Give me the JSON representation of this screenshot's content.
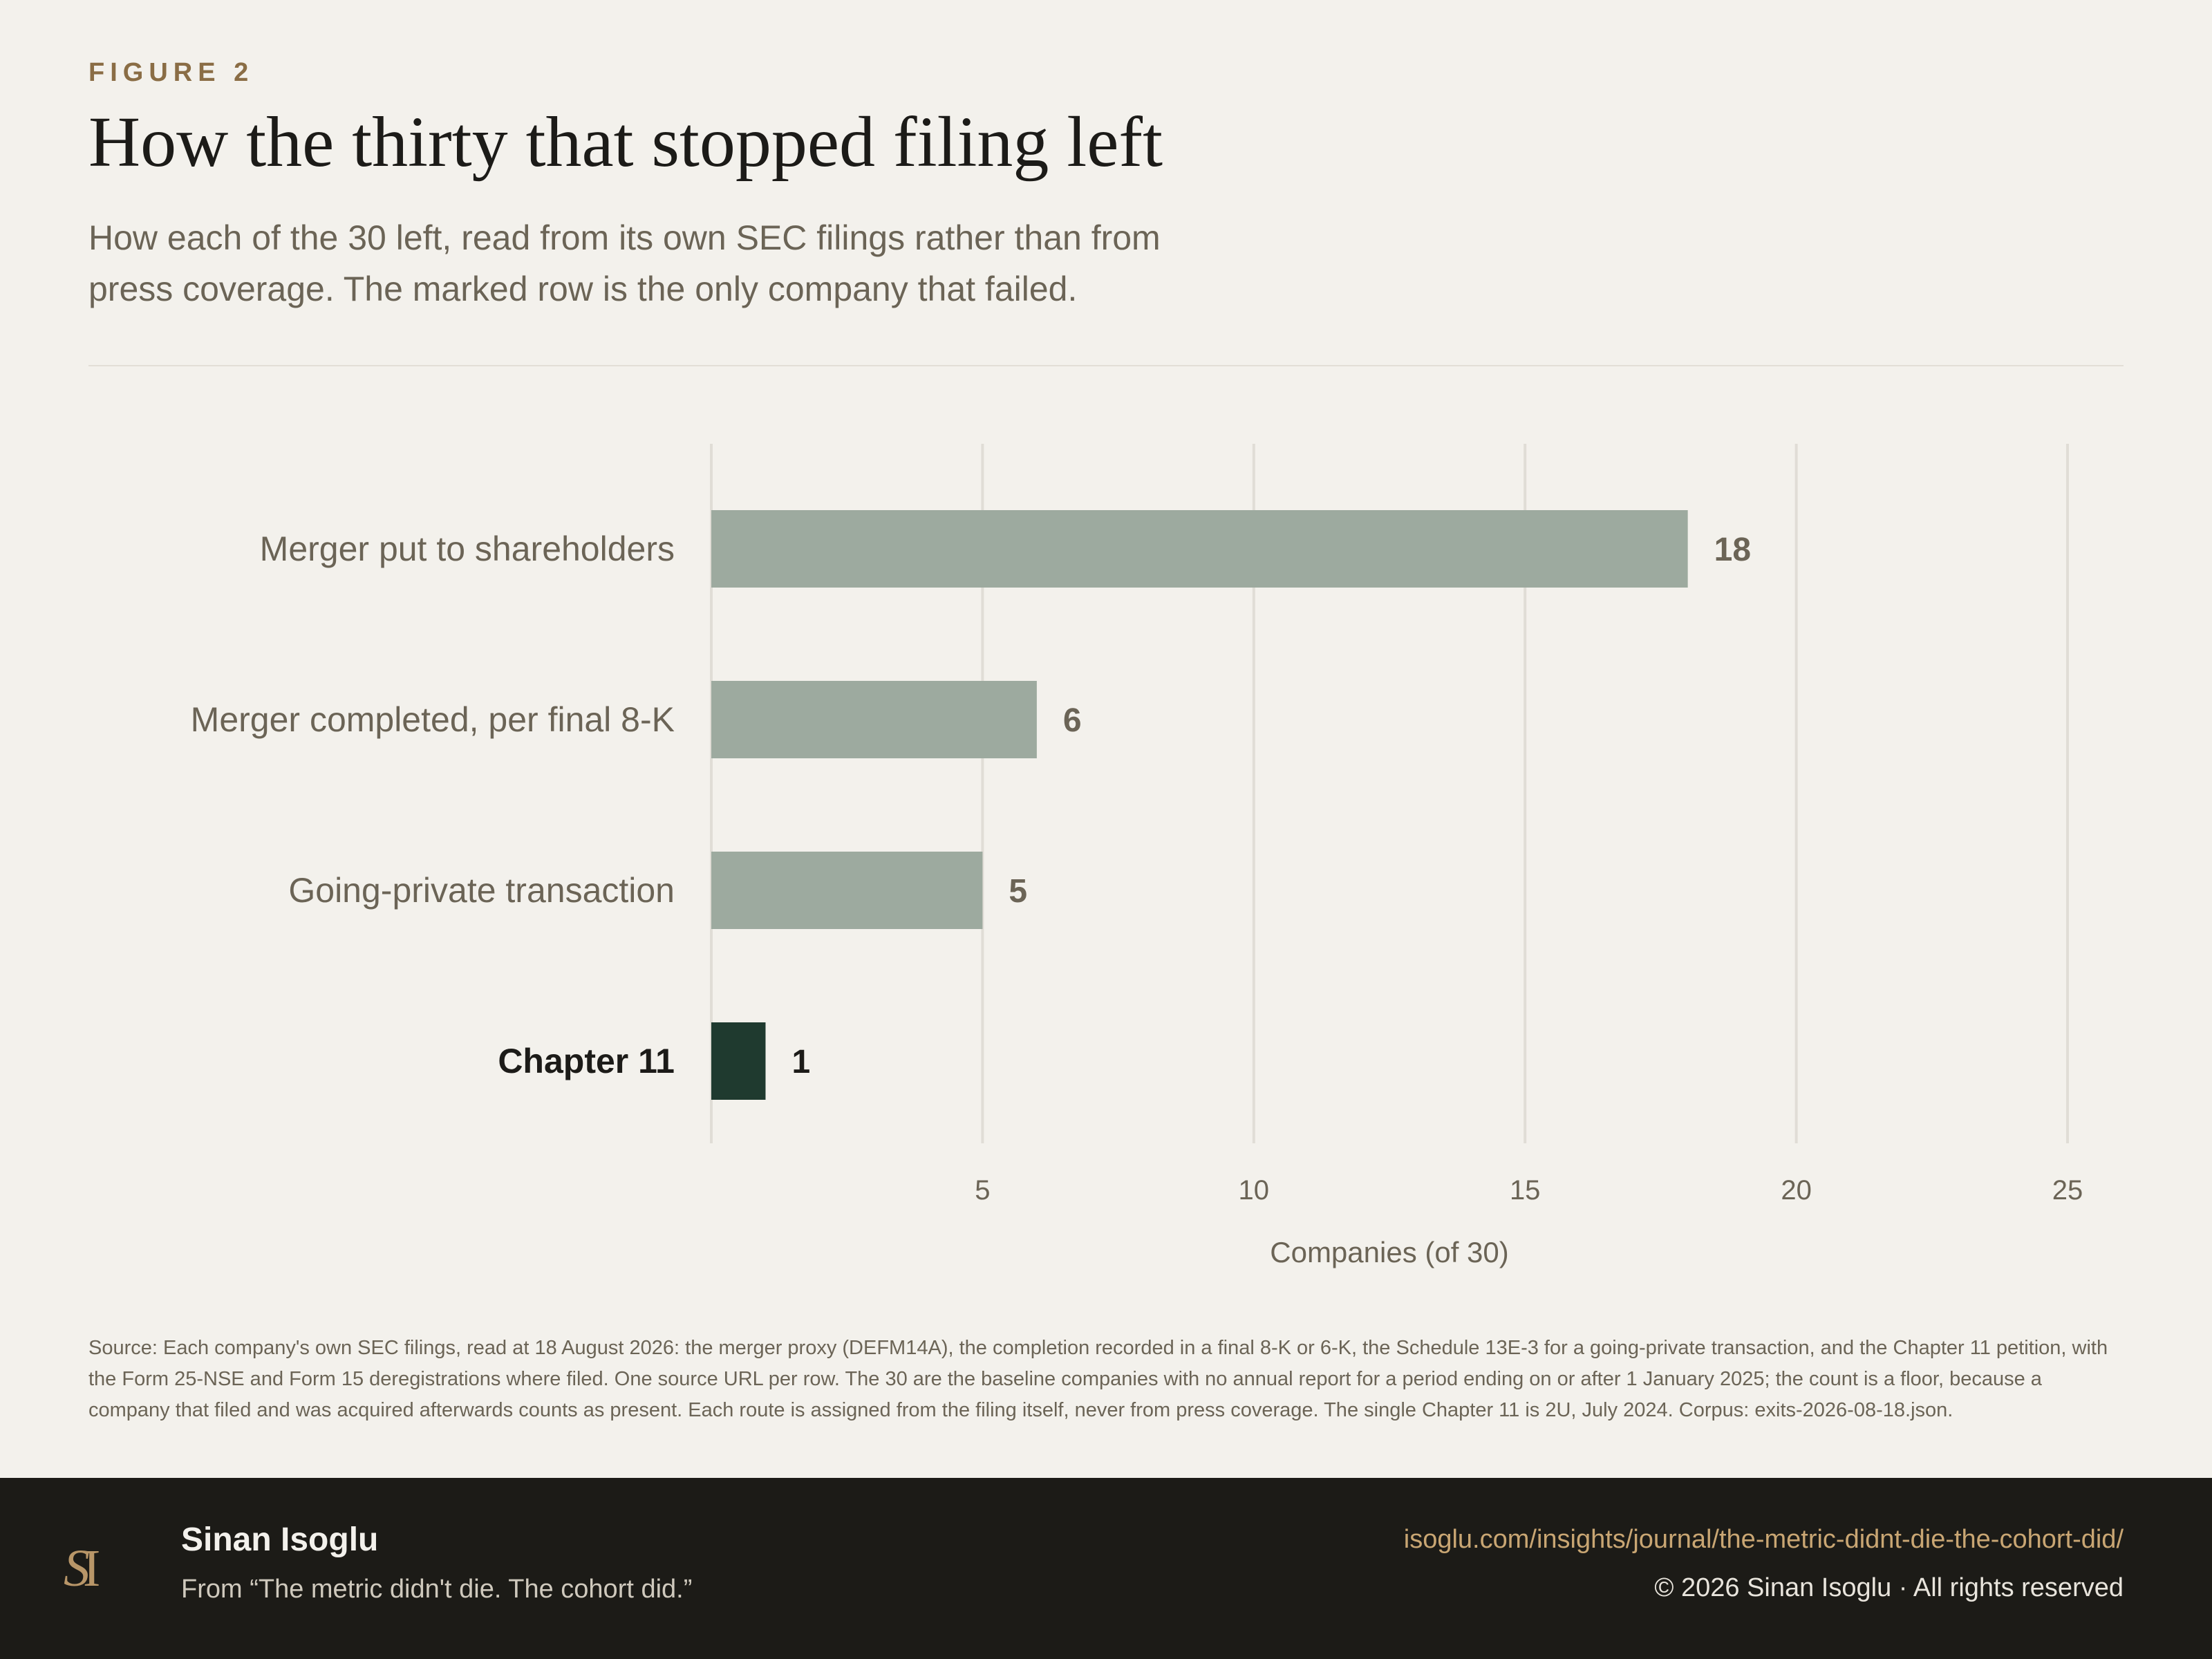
{
  "figure_label": "FIGURE 2",
  "title": "How the thirty that stopped filing left",
  "subtitle": "How each of the 30 left, read from its own SEC filings rather than from press coverage. The marked row is the only company that failed.",
  "source_note": "Source: Each company's own SEC filings, read at 18 August 2026: the merger proxy (DEFM14A), the completion recorded in a final 8-K or 6-K, the Schedule 13E-3 for a going-private transaction, and the Chapter 11 petition, with the Form 25-NSE and Form 15 deregistrations where filed. One source URL per row. The 30 are the baseline companies with no annual report for a period ending on or after 1 January 2025; the count is a floor, because a company that filed and was acquired afterwards counts as present. Each route is assigned from the filing itself, never from press coverage. The single Chapter 11 is 2U, July 2024. Corpus: exits-2026-08-18.json.",
  "footer": {
    "logo": "SI",
    "author": "Sinan Isoglu",
    "from_line": "From “The metric didn't die. The cohort did.”",
    "url": "isoglu.com/insights/journal/the-metric-didnt-die-the-cohort-did/",
    "copyright": "© 2026 Sinan Isoglu · All rights reserved"
  },
  "colors": {
    "bar": "#9daa9f",
    "highlight": "#1f3a2f",
    "grid": "#e0ddd6",
    "label": "#6b6456",
    "highlight_label": "#1c1b18",
    "accent": "#8a6d45"
  },
  "chart_data": {
    "type": "bar",
    "orientation": "horizontal",
    "categories": [
      "Merger put to shareholders",
      "Merger completed, per final 8-K",
      "Going-private transaction",
      "Chapter 11"
    ],
    "values": [
      18,
      6,
      5,
      1
    ],
    "highlight": "Chapter 11",
    "xlabel": "Companies (of 30)",
    "ylabel": "",
    "xlim": [
      0,
      25
    ],
    "xticks": [
      5,
      10,
      15,
      20,
      25
    ],
    "grid": true
  }
}
